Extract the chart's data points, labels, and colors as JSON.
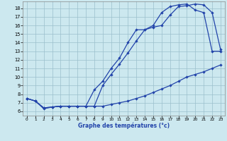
{
  "title": "Graphe des températures (°c)",
  "bg_color": "#cce8ef",
  "line_color": "#2244aa",
  "grid_color": "#9bbfcc",
  "x_ticks": [
    0,
    1,
    2,
    3,
    4,
    5,
    6,
    7,
    8,
    9,
    10,
    11,
    12,
    13,
    14,
    15,
    16,
    17,
    18,
    19,
    20,
    21,
    22,
    23
  ],
  "y_ticks": [
    6,
    7,
    8,
    9,
    10,
    11,
    12,
    13,
    14,
    15,
    16,
    17,
    18
  ],
  "ylim": [
    5.5,
    18.8
  ],
  "xlim": [
    -0.5,
    23.5
  ],
  "line1_x": [
    0,
    1,
    2,
    3,
    4,
    5,
    6,
    7,
    8,
    9,
    10,
    11,
    12,
    13,
    14,
    15,
    16,
    17,
    18,
    19,
    20,
    21,
    22,
    23
  ],
  "line1_y": [
    7.5,
    7.2,
    6.3,
    6.5,
    6.6,
    6.6,
    6.6,
    6.6,
    6.6,
    6.6,
    6.8,
    7.0,
    7.2,
    7.5,
    7.8,
    8.2,
    8.6,
    9.0,
    9.5,
    10.0,
    10.3,
    10.6,
    11.0,
    11.4
  ],
  "line2_x": [
    0,
    1,
    2,
    3,
    4,
    5,
    6,
    7,
    8,
    9,
    10,
    11,
    12,
    13,
    14,
    15,
    16,
    17,
    18,
    19,
    20,
    21,
    22,
    23
  ],
  "line2_y": [
    7.5,
    7.2,
    6.4,
    6.5,
    6.6,
    6.6,
    6.6,
    6.6,
    6.6,
    9.0,
    10.3,
    11.5,
    12.8,
    14.2,
    15.5,
    15.8,
    16.0,
    17.2,
    18.2,
    18.3,
    18.5,
    18.4,
    17.5,
    13.2
  ],
  "line3_x": [
    0,
    1,
    2,
    3,
    4,
    5,
    6,
    7,
    8,
    9,
    10,
    11,
    12,
    13,
    14,
    15,
    16,
    17,
    18,
    19,
    20,
    21,
    22,
    23
  ],
  "line3_y": [
    7.5,
    7.2,
    6.4,
    6.5,
    6.6,
    6.6,
    6.6,
    6.6,
    8.5,
    9.5,
    11.0,
    12.2,
    14.0,
    15.5,
    15.5,
    16.0,
    17.5,
    18.2,
    18.4,
    18.5,
    17.8,
    17.5,
    13.0,
    13.0
  ]
}
